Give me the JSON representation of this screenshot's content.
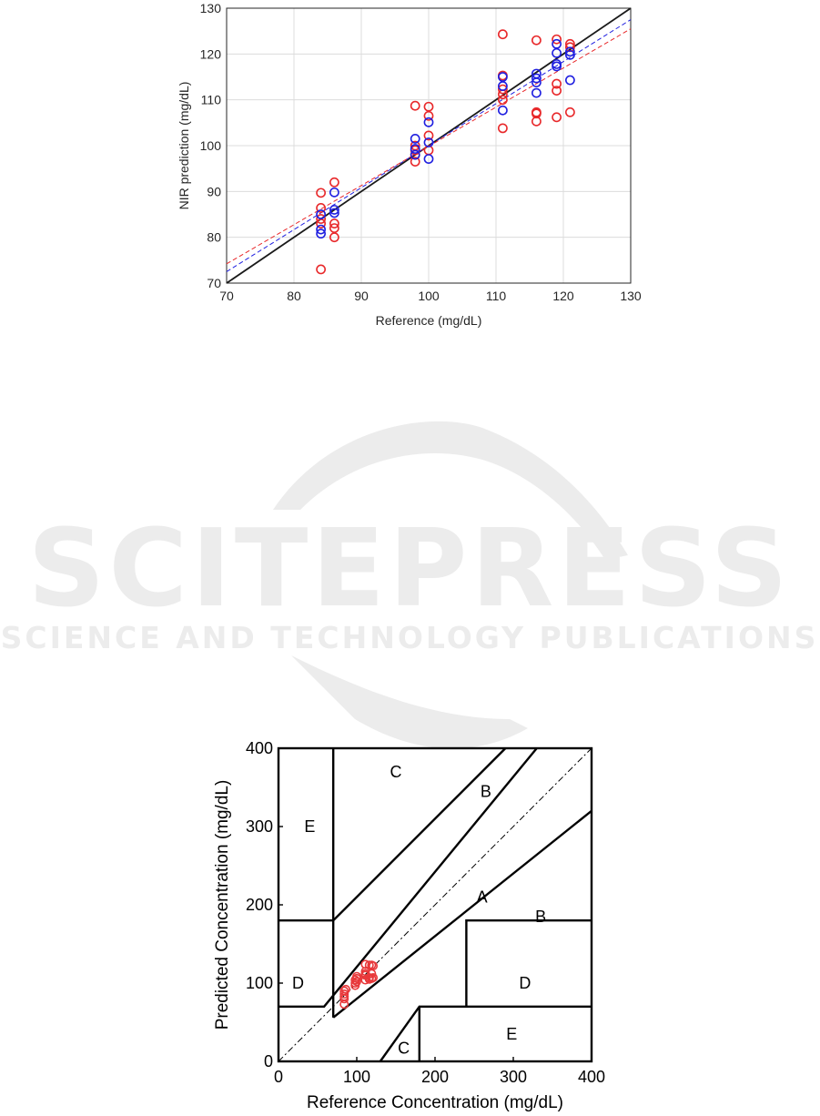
{
  "watermark": {
    "title": "SCITEPRESS",
    "subtitle": "SCIENCE AND TECHNOLOGY PUBLICATIONS"
  },
  "colors": {
    "red": "#e8282a",
    "blue": "#1f1fe0",
    "grid": "#dcdcdc",
    "zone_red": "#e8383a"
  },
  "chart_data": [
    {
      "type": "scatter",
      "title": "",
      "xlabel": "Reference (mg/dL)",
      "ylabel": "NIR prediction (mg/dL)",
      "xlim": [
        70,
        130
      ],
      "ylim": [
        70,
        130
      ],
      "xticks": [
        70,
        80,
        90,
        100,
        110,
        120,
        130
      ],
      "yticks": [
        70,
        80,
        90,
        100,
        110,
        120,
        130
      ],
      "grid": true,
      "series": [
        {
          "color": "red",
          "marker": "circle",
          "points": [
            [
              84,
              73
            ],
            [
              84,
              89.7
            ],
            [
              84,
              86.4
            ],
            [
              84,
              84
            ],
            [
              84,
              83
            ],
            [
              86,
              92
            ],
            [
              86,
              83
            ],
            [
              86,
              82
            ],
            [
              86,
              80
            ],
            [
              98,
              108.7
            ],
            [
              98,
              100
            ],
            [
              98,
              99
            ],
            [
              98,
              98
            ],
            [
              98,
              96.5
            ],
            [
              100,
              108.5
            ],
            [
              100,
              106.5
            ],
            [
              100,
              102.2
            ],
            [
              100,
              99
            ],
            [
              111,
              124.3
            ],
            [
              111,
              115.3
            ],
            [
              111,
              112.3
            ],
            [
              111,
              111.2
            ],
            [
              111,
              110
            ],
            [
              111,
              103.8
            ],
            [
              116,
              123
            ],
            [
              116,
              107.3
            ],
            [
              116,
              105.3
            ],
            [
              116,
              107
            ],
            [
              119,
              123.2
            ],
            [
              119,
              113.5
            ],
            [
              119,
              112
            ],
            [
              119,
              106.2
            ],
            [
              121,
              122.2
            ],
            [
              121,
              121.5
            ],
            [
              121,
              107.3
            ]
          ]
        },
        {
          "color": "blue",
          "marker": "circle",
          "points": [
            [
              84,
              85
            ],
            [
              84,
              81.7
            ],
            [
              84,
              80.8
            ],
            [
              86,
              89.8
            ],
            [
              86,
              86
            ],
            [
              86,
              85.3
            ],
            [
              98,
              101.5
            ],
            [
              98,
              99.3
            ],
            [
              98,
              98
            ],
            [
              100,
              105.1
            ],
            [
              100,
              100.7
            ],
            [
              100,
              97.1
            ],
            [
              111,
              115
            ],
            [
              111,
              113
            ],
            [
              111,
              107.7
            ],
            [
              116,
              115.7
            ],
            [
              116,
              114.7
            ],
            [
              116,
              113.8
            ],
            [
              116,
              111.5
            ],
            [
              119,
              122.2
            ],
            [
              119,
              120.2
            ],
            [
              119,
              117.8
            ],
            [
              119,
              117.3
            ],
            [
              121,
              120.5
            ],
            [
              121,
              119.8
            ],
            [
              121,
              114.3
            ]
          ]
        }
      ],
      "lines": [
        {
          "style": "solid",
          "color": "black",
          "x": [
            70,
            130
          ],
          "y": [
            70,
            130
          ]
        },
        {
          "style": "dashed",
          "color": "blue",
          "x": [
            70,
            130
          ],
          "y": [
            72.5,
            127.5
          ]
        },
        {
          "style": "dashed",
          "color": "red",
          "x": [
            70,
            130
          ],
          "y": [
            74.2,
            125.5
          ]
        }
      ]
    },
    {
      "type": "scatter",
      "title": "",
      "xlabel": "Reference Concentration (mg/dL)",
      "ylabel": "Predicted Concentration (mg/dL)",
      "xlim": [
        0,
        400
      ],
      "ylim": [
        0,
        400
      ],
      "xticks": [
        0,
        100,
        200,
        300,
        400
      ],
      "yticks": [
        0,
        100,
        200,
        300,
        400
      ],
      "grid": false,
      "zone_labels": [
        {
          "label": "E",
          "x": 40,
          "y": 300
        },
        {
          "label": "C",
          "x": 150,
          "y": 370
        },
        {
          "label": "B",
          "x": 265,
          "y": 345
        },
        {
          "label": "A",
          "x": 260,
          "y": 210
        },
        {
          "label": "B",
          "x": 335,
          "y": 185
        },
        {
          "label": "D",
          "x": 25,
          "y": 100
        },
        {
          "label": "D",
          "x": 315,
          "y": 100
        },
        {
          "label": "E",
          "x": 298,
          "y": 35
        },
        {
          "label": "C",
          "x": 160,
          "y": 17
        }
      ],
      "series": [
        {
          "color": "zone_red",
          "marker": "circle",
          "points": [
            [
              84,
              73
            ],
            [
              84,
              80
            ],
            [
              84,
              83
            ],
            [
              84,
              86
            ],
            [
              84,
              90
            ],
            [
              86,
              92
            ],
            [
              98,
              97
            ],
            [
              98,
              100
            ],
            [
              98,
              104
            ],
            [
              100,
              106
            ],
            [
              100,
              108.5
            ],
            [
              100,
              102
            ],
            [
              111,
              104
            ],
            [
              111,
              110
            ],
            [
              111,
              112
            ],
            [
              111,
              115
            ],
            [
              111,
              124
            ],
            [
              116,
              105
            ],
            [
              116,
              107
            ],
            [
              116,
              123
            ],
            [
              119,
              106
            ],
            [
              119,
              112
            ],
            [
              119,
              123
            ],
            [
              121,
              107
            ],
            [
              121,
              122
            ]
          ]
        }
      ]
    }
  ]
}
